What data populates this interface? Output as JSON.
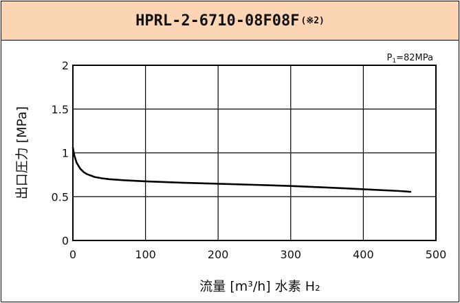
{
  "header": {
    "title": "HPRL-2-6710-08F08F",
    "note": "(※2)",
    "bg_color": "#fcd5b4"
  },
  "condition": {
    "label": "P",
    "sub": "1",
    "value": "=82MPa"
  },
  "chart_data": {
    "type": "line",
    "title": "HPRL-2-6710-08F08F(※2)",
    "xlabel": "流量 [m³/h] 水素 H₂",
    "ylabel": "出口圧力 [MPa]",
    "xlim": [
      0,
      500
    ],
    "ylim": [
      0,
      2
    ],
    "xticks": [
      "0",
      "100",
      "200",
      "300",
      "400",
      "500"
    ],
    "yticks": [
      "0",
      "0.5",
      "1",
      "1.5",
      "2"
    ],
    "grid": true,
    "series": [
      {
        "color": "#000000",
        "x": [
          0,
          2,
          5,
          10,
          15,
          20,
          30,
          40,
          50,
          70,
          100,
          150,
          200,
          250,
          300,
          350,
          400,
          450,
          465
        ],
        "y": [
          1.06,
          0.97,
          0.89,
          0.82,
          0.78,
          0.755,
          0.725,
          0.71,
          0.7,
          0.688,
          0.675,
          0.66,
          0.648,
          0.635,
          0.622,
          0.605,
          0.585,
          0.565,
          0.555
        ]
      }
    ]
  }
}
